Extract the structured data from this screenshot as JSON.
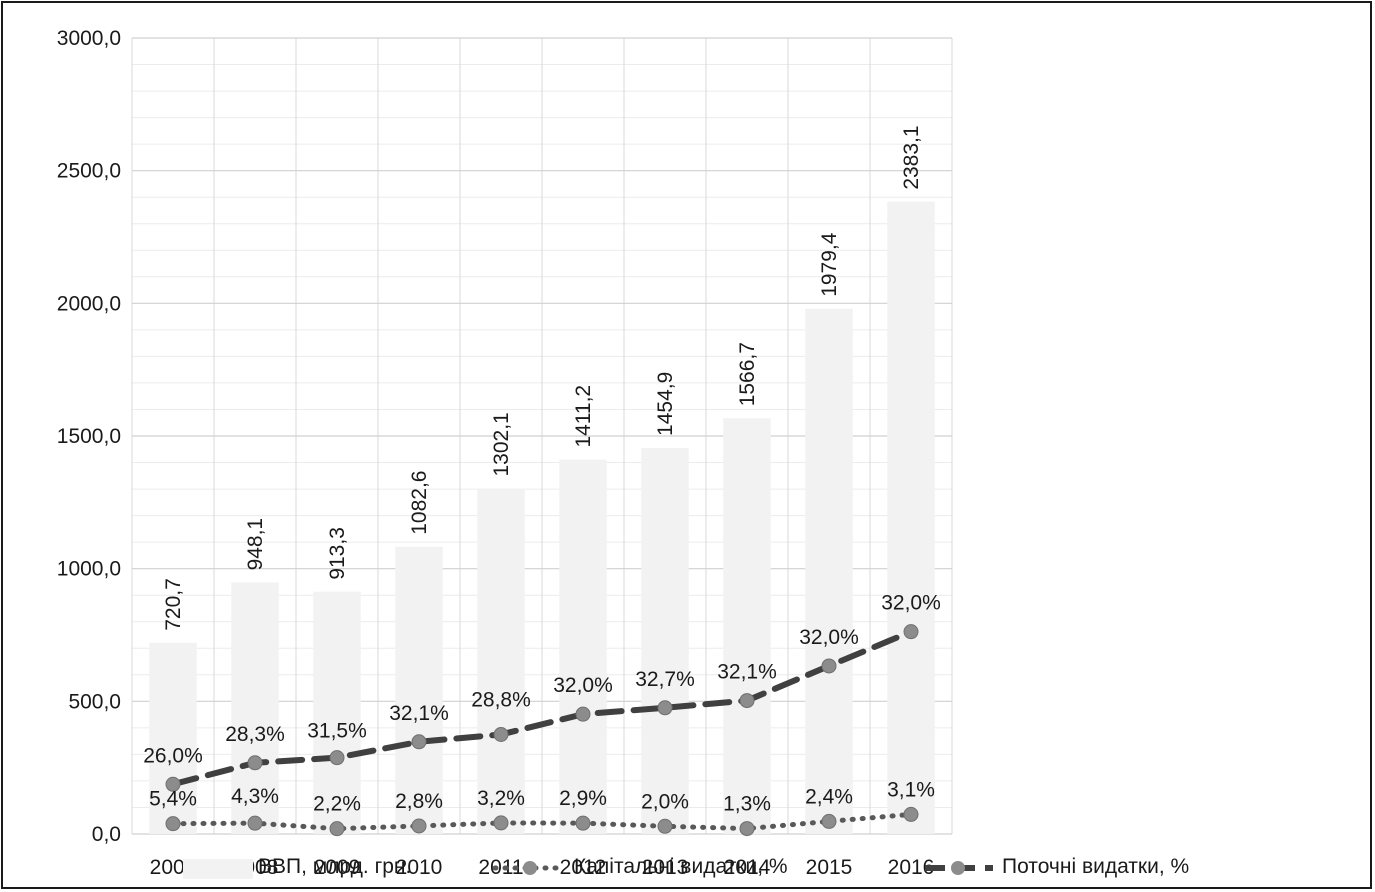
{
  "chart_data": {
    "type": "bar",
    "categories": [
      "2007",
      "2008",
      "2009",
      "2010",
      "2011",
      "2012",
      "2013",
      "2014",
      "2015",
      "2016"
    ],
    "bar_series": {
      "name": "ВВП, млрд. грн.",
      "values": [
        720.7,
        948.1,
        913.3,
        1082.6,
        1302.1,
        1411.2,
        1454.9,
        1566.7,
        1979.4,
        2383.1
      ],
      "labels": [
        "720,7",
        "948,1",
        "913,3",
        "1082,6",
        "1302,1",
        "1411,2",
        "1454,9",
        "1566,7",
        "1979,4",
        "2383,1"
      ],
      "color": "#f2f2f2"
    },
    "line_series": [
      {
        "name": "Капітальні видатки, %",
        "style": "dotted",
        "color": "#595959",
        "labels": [
          "5,4%",
          "4,3%",
          "2,2%",
          "2,8%",
          "3,2%",
          "2,9%",
          "2,0%",
          "1,3%",
          "2,4%",
          "3,1%"
        ],
        "values": [
          38.9,
          40.8,
          20.1,
          30.3,
          41.7,
          40.9,
          29.1,
          20.4,
          47.5,
          73.9
        ]
      },
      {
        "name": "Поточні видатки, %",
        "style": "dashed",
        "color": "#404040",
        "labels": [
          "26,0%",
          "28,3%",
          "31,5%",
          "32,1%",
          "28,8%",
          "32,0%",
          "32,7%",
          "32,1%",
          "32,0%",
          "32,0%"
        ],
        "values": [
          187.4,
          268.3,
          287.7,
          347.5,
          375.0,
          451.6,
          475.7,
          502.9,
          633.4,
          762.6
        ]
      }
    ],
    "y_axis": {
      "min": 0,
      "max": 3000,
      "major_step": 500,
      "minor_step": 100,
      "tick_labels": [
        "0,0",
        "500,0",
        "1000,0",
        "1500,0",
        "2000,0",
        "2500,0",
        "3000,0"
      ]
    },
    "grid": true,
    "legend_position": "bottom"
  }
}
